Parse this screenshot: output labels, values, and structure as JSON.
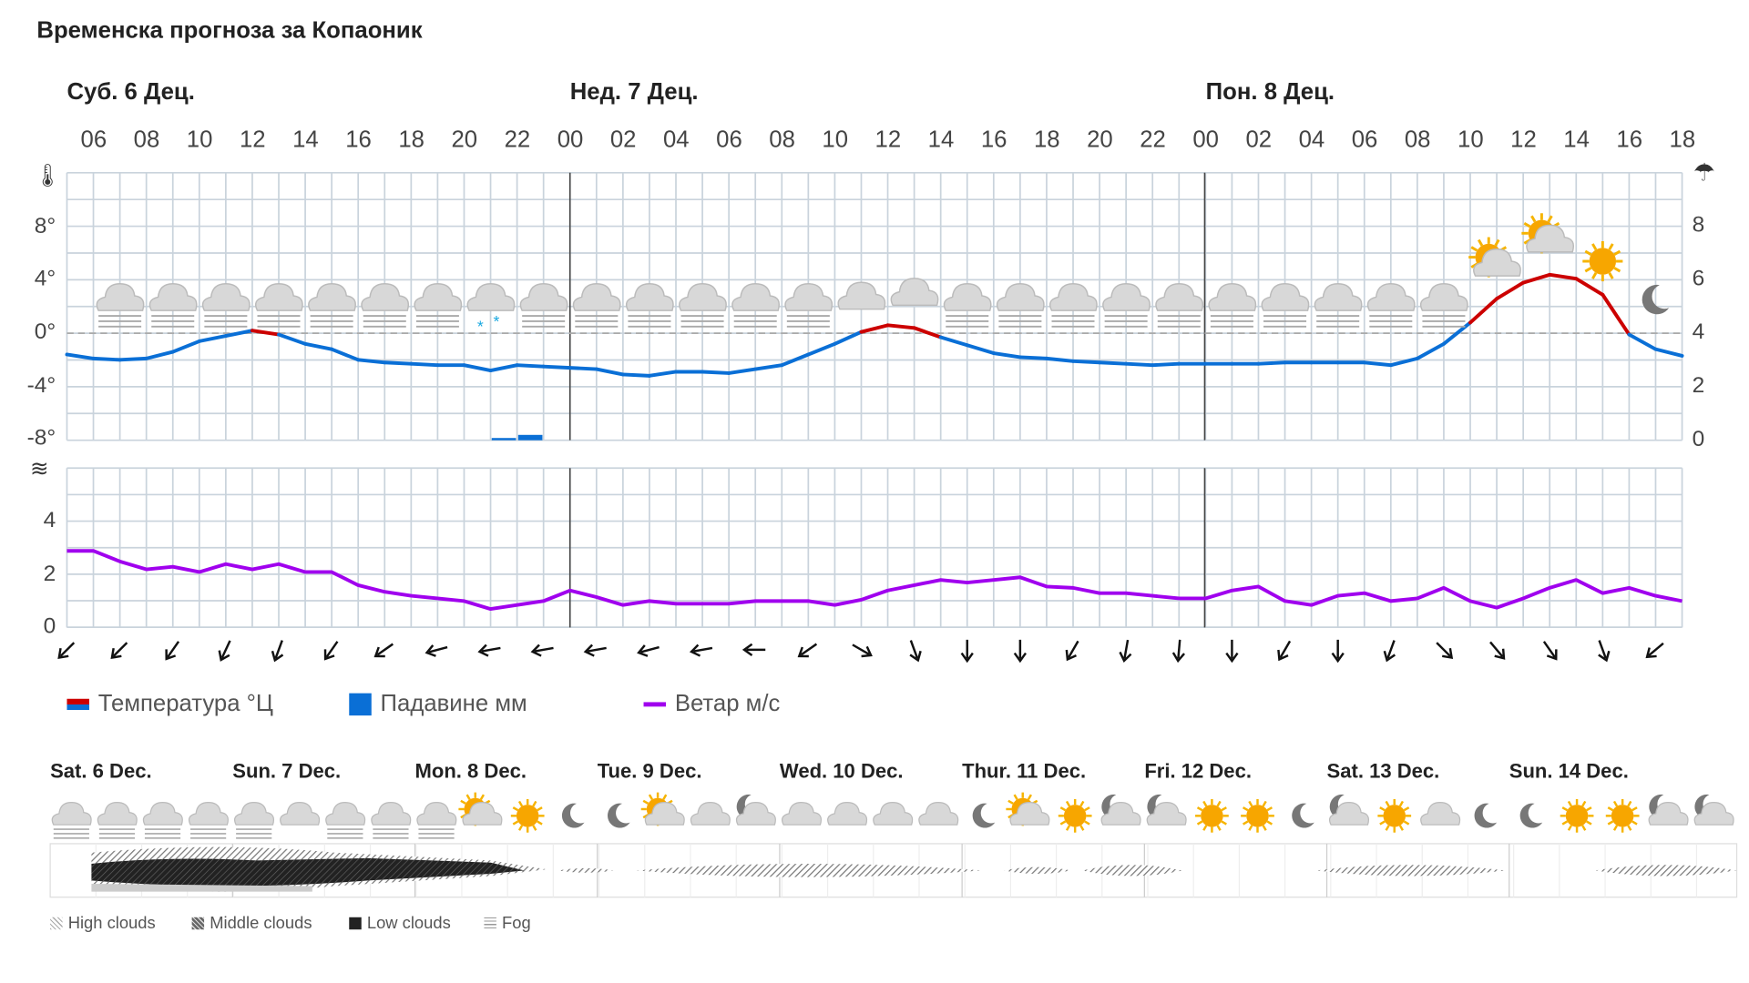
{
  "title": "Временска прогноза за Копаоник",
  "days": [
    "Суб. 6 Дец.",
    "Нед. 7 Дец.",
    "Пон. 8 Дец."
  ],
  "hours": [
    "06",
    "08",
    "10",
    "12",
    "14",
    "16",
    "18",
    "20",
    "22",
    "00",
    "02",
    "04",
    "06",
    "08",
    "10",
    "12",
    "14",
    "16",
    "18",
    "20",
    "22",
    "00",
    "02",
    "04",
    "06",
    "08",
    "10",
    "12",
    "14",
    "16",
    "18"
  ],
  "legend": {
    "temperature": "Температура °Ц",
    "precipitation": "Падавине мм",
    "wind": "Ветар м/с"
  },
  "colors": {
    "temp_above": "#cc0000",
    "temp_below": "#0a6fd6",
    "precip": "#0a6fd6",
    "wind": "#a000ee",
    "grid": "#c9d3dc"
  },
  "chart_data": [
    {
      "type": "line",
      "title": "",
      "start_hour": "05",
      "ylim": [
        -8,
        12
      ],
      "y_ticks": [
        "8°",
        "4°",
        "0°",
        "-4°",
        "-8°"
      ],
      "y_tick_values": [
        8,
        4,
        0,
        -4,
        -8
      ],
      "right_ylim": [
        0,
        10
      ],
      "right_ticks": [
        "8",
        "6",
        "4",
        "2",
        "0"
      ],
      "right_tick_values": [
        8,
        6,
        4,
        2,
        0
      ],
      "series": [
        {
          "name": "Температура °Ц",
          "values": [
            -1.6,
            -1.9,
            -2,
            -1.9,
            -1.4,
            -0.6,
            -0.2,
            0.2,
            -0.1,
            -0.8,
            -1.2,
            -2,
            -2.2,
            -2.3,
            -2.4,
            -2.4,
            -2.8,
            -2.4,
            -2.5,
            -2.6,
            -2.7,
            -3.1,
            -3.2,
            -2.9,
            -2.9,
            -3,
            -2.7,
            -2.4,
            -1.6,
            -0.8,
            0.1,
            0.6,
            0.4,
            -0.3,
            -0.9,
            -1.5,
            -1.8,
            -1.9,
            -2.1,
            -2.2,
            -2.3,
            -2.4,
            -2.3,
            -2.3,
            -2.3,
            -2.3,
            -2.2,
            -2.2,
            -2.2,
            -2.2,
            -2.4,
            -1.9,
            -0.8,
            0.8,
            2.6,
            3.8,
            4.4,
            4.1,
            2.9,
            -0.1,
            -1.2,
            -1.7
          ]
        },
        {
          "name": "Падавине мм",
          "type": "bar",
          "hour_index": [
            16,
            17
          ],
          "values": [
            0.05,
            0.2
          ]
        }
      ],
      "weather_icons": [
        "cloud-fog",
        "cloud-fog",
        "cloud-fog",
        "cloud-fog",
        "cloud-fog",
        "cloud-fog",
        "cloud-fog",
        "snow-cloud",
        "cloud-fog",
        "cloud-fog",
        "cloud-fog",
        "cloud-fog",
        "cloud-fog",
        "cloud-fog",
        "cloud",
        "cloud",
        "cloud-fog",
        "cloud-fog",
        "cloud-fog",
        "cloud-fog",
        "cloud-fog",
        "cloud-fog",
        "cloud-fog",
        "cloud-fog",
        "cloud-fog",
        "cloud-fog",
        "sun-cloud",
        "sun-cloud",
        "sun",
        "moon"
      ]
    },
    {
      "type": "line",
      "start_hour": "05",
      "ylim": [
        0,
        6
      ],
      "y_ticks": [
        "4",
        "2",
        "0"
      ],
      "y_tick_values": [
        4,
        2,
        0
      ],
      "series": [
        {
          "name": "Ветар м/с",
          "values": [
            2.9,
            2.9,
            2.5,
            2.2,
            2.3,
            2.1,
            2.4,
            2.2,
            2.4,
            2.1,
            2.1,
            1.6,
            1.35,
            1.2,
            1.1,
            1.0,
            0.7,
            0.85,
            1.0,
            1.4,
            1.15,
            0.85,
            1.0,
            0.9,
            0.9,
            0.9,
            1.0,
            1.0,
            1.0,
            0.85,
            1.05,
            1.4,
            1.6,
            1.8,
            1.7,
            1.8,
            1.9,
            1.55,
            1.5,
            1.3,
            1.3,
            1.2,
            1.1,
            1.1,
            1.4,
            1.55,
            1.0,
            0.85,
            1.2,
            1.3,
            1.0,
            1.1,
            1.5,
            1.0,
            0.75,
            1.1,
            1.5,
            1.8,
            1.3,
            1.5,
            1.2,
            1.0
          ]
        }
      ],
      "wind_arrow_bearings": [
        225,
        225,
        215,
        205,
        200,
        215,
        235,
        255,
        260,
        260,
        260,
        255,
        260,
        270,
        235,
        120,
        160,
        180,
        180,
        210,
        190,
        185,
        180,
        210,
        180,
        200,
        135,
        140,
        145,
        160,
        230
      ]
    }
  ],
  "week": {
    "days": [
      "Sat. 6 Dec.",
      "Sun. 7 Dec.",
      "Mon. 8 Dec.",
      "Tue. 9 Dec.",
      "Wed. 10 Dec.",
      "Thur. 11 Dec.",
      "Fri. 12 Dec.",
      "Sat. 13 Dec.",
      "Sun. 14 Dec."
    ],
    "icons": [
      "cloud-fog",
      "cloud-fog",
      "cloud-fog",
      "cloud-fog",
      "cloud-fog",
      "cloud",
      "cloud-fog",
      "cloud-fog",
      "cloud-fog",
      "sun-cloud",
      "sun",
      "moon",
      "moon",
      "sun-cloud",
      "cloud",
      "moon-cloud",
      "cloud",
      "cloud",
      "cloud",
      "cloud",
      "moon",
      "sun-cloud",
      "sun",
      "moon-cloud",
      "moon-cloud",
      "sun",
      "sun",
      "moon",
      "moon-cloud",
      "sun",
      "cloud",
      "moon",
      "moon",
      "sun",
      "sun",
      "moon-cloud",
      "moon-cloud"
    ],
    "legend": [
      "High clouds",
      "Middle clouds",
      "Low clouds",
      "Fog"
    ]
  }
}
